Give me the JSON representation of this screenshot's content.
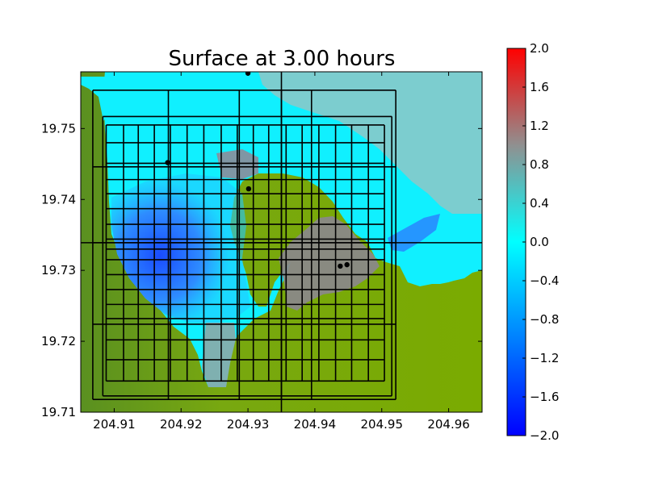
{
  "chart_data": {
    "type": "heatmap",
    "title": "Surface at 3.00 hours",
    "xlabel": "",
    "ylabel": "",
    "xlim": [
      204.905,
      204.965
    ],
    "ylim": [
      19.71,
      19.758
    ],
    "x_ticks": [
      {
        "value": 204.91,
        "label": "204.91"
      },
      {
        "value": 204.92,
        "label": "204.92"
      },
      {
        "value": 204.93,
        "label": "204.93"
      },
      {
        "value": 204.94,
        "label": "204.94"
      },
      {
        "value": 204.95,
        "label": "204.95"
      },
      {
        "value": 204.96,
        "label": "204.96"
      }
    ],
    "y_ticks": [
      {
        "value": 19.71,
        "label": "19.71"
      },
      {
        "value": 19.72,
        "label": "19.72"
      },
      {
        "value": 19.73,
        "label": "19.73"
      },
      {
        "value": 19.74,
        "label": "19.74"
      },
      {
        "value": 19.75,
        "label": "19.75"
      }
    ],
    "colorbar": {
      "range": [
        -2.0,
        2.0
      ],
      "ticks": [
        {
          "value": 2.0,
          "label": "2.0"
        },
        {
          "value": 1.6,
          "label": "1.6"
        },
        {
          "value": 1.2,
          "label": "1.2"
        },
        {
          "value": 0.8,
          "label": "0.8"
        },
        {
          "value": 0.4,
          "label": "0.4"
        },
        {
          "value": 0.0,
          "label": "0.0"
        },
        {
          "value": -0.4,
          "label": "−0.4"
        },
        {
          "value": -0.8,
          "label": "−0.8"
        },
        {
          "value": -1.2,
          "label": "−1.2"
        },
        {
          "value": -1.6,
          "label": "−1.6"
        },
        {
          "value": -2.0,
          "label": "−2.0"
        }
      ],
      "colors": {
        "low": "#0000ff",
        "mid_low": "#00ffff",
        "mid_high": "#909090",
        "high": "#ff0000"
      }
    },
    "land_color": "#7aab00",
    "land_color_dark": "#5a9020",
    "grid": false,
    "gauges": [
      {
        "x": 204.93,
        "y": 19.7578
      },
      {
        "x": 204.918,
        "y": 19.7452
      },
      {
        "x": 204.9301,
        "y": 19.7415
      },
      {
        "x": 204.9438,
        "y": 19.7306
      },
      {
        "x": 204.9448,
        "y": 19.7308
      }
    ],
    "amr_patch_lines": {
      "outer_x": [
        204.9068,
        204.9181,
        204.9287,
        204.935,
        204.9395,
        204.9521
      ],
      "outer_y": [
        19.7118,
        19.7224,
        19.7339,
        19.7446,
        19.7554
      ],
      "mid_x": [
        204.9083,
        204.9515
      ],
      "mid_y": [
        19.7123,
        19.7517
      ],
      "fine_x": [
        204.9088,
        204.9114,
        204.9136,
        204.916,
        204.9184,
        204.9209,
        204.9234,
        204.926,
        204.9284,
        204.9308,
        204.9331,
        204.9357,
        204.9381,
        204.9406,
        204.9431,
        204.9455,
        204.948,
        204.9504
      ],
      "fine_y": [
        19.7144,
        19.7174,
        19.7202,
        19.7232,
        19.7252,
        19.7273,
        19.7294,
        19.7315,
        19.733,
        19.7344,
        19.7365,
        19.7387,
        19.7408,
        19.7428,
        19.7451,
        19.748,
        19.7505
      ]
    }
  }
}
